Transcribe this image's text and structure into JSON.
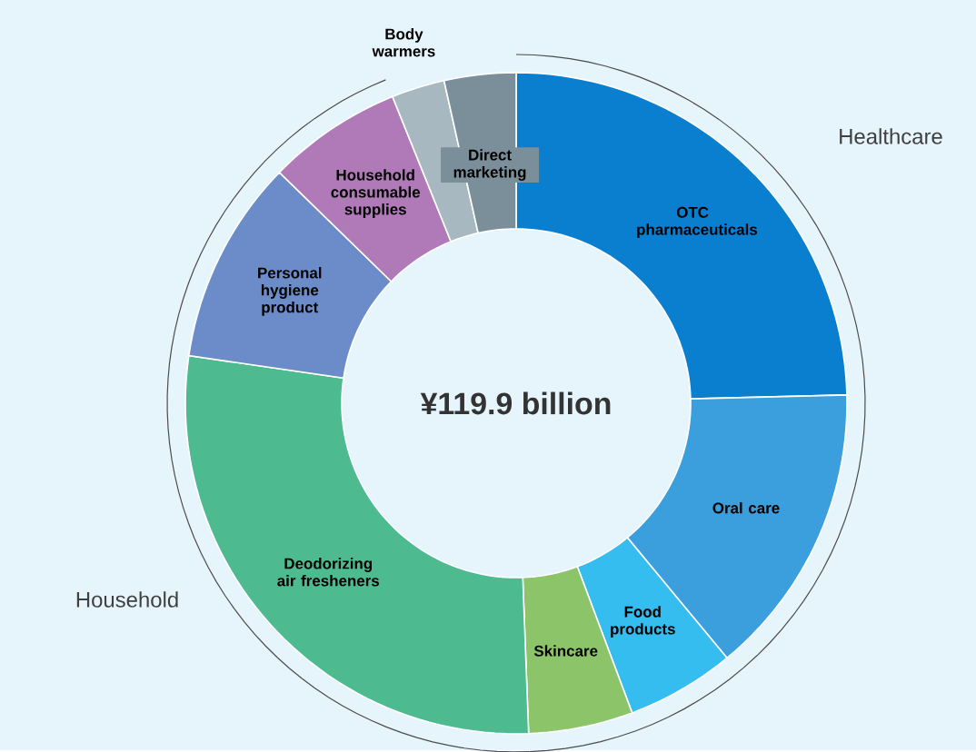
{
  "chart_data": {
    "type": "donut",
    "categories": [
      "OTC pharmaceuticals",
      "Oral care",
      "Food products",
      "Skincare",
      "Deodorizing air fresheners",
      "Personal hygiene product",
      "Household consumable supplies",
      "Body warmers",
      "Direct marketing"
    ],
    "values": [
      24.6,
      14.4,
      5.3,
      5.1,
      27.9,
      10.0,
      6.6,
      2.6,
      3.5
    ],
    "colors": [
      "#0a7fd0",
      "#3a9fdc",
      "#35bdf0",
      "#8cc46a",
      "#4dba90",
      "#6b8cc8",
      "#b07ab8",
      "#a8b8c0",
      "#7a8f9a"
    ],
    "annotations": [
      "¥119.9 billion",
      "Healthcare",
      "Household"
    ]
  }
}
